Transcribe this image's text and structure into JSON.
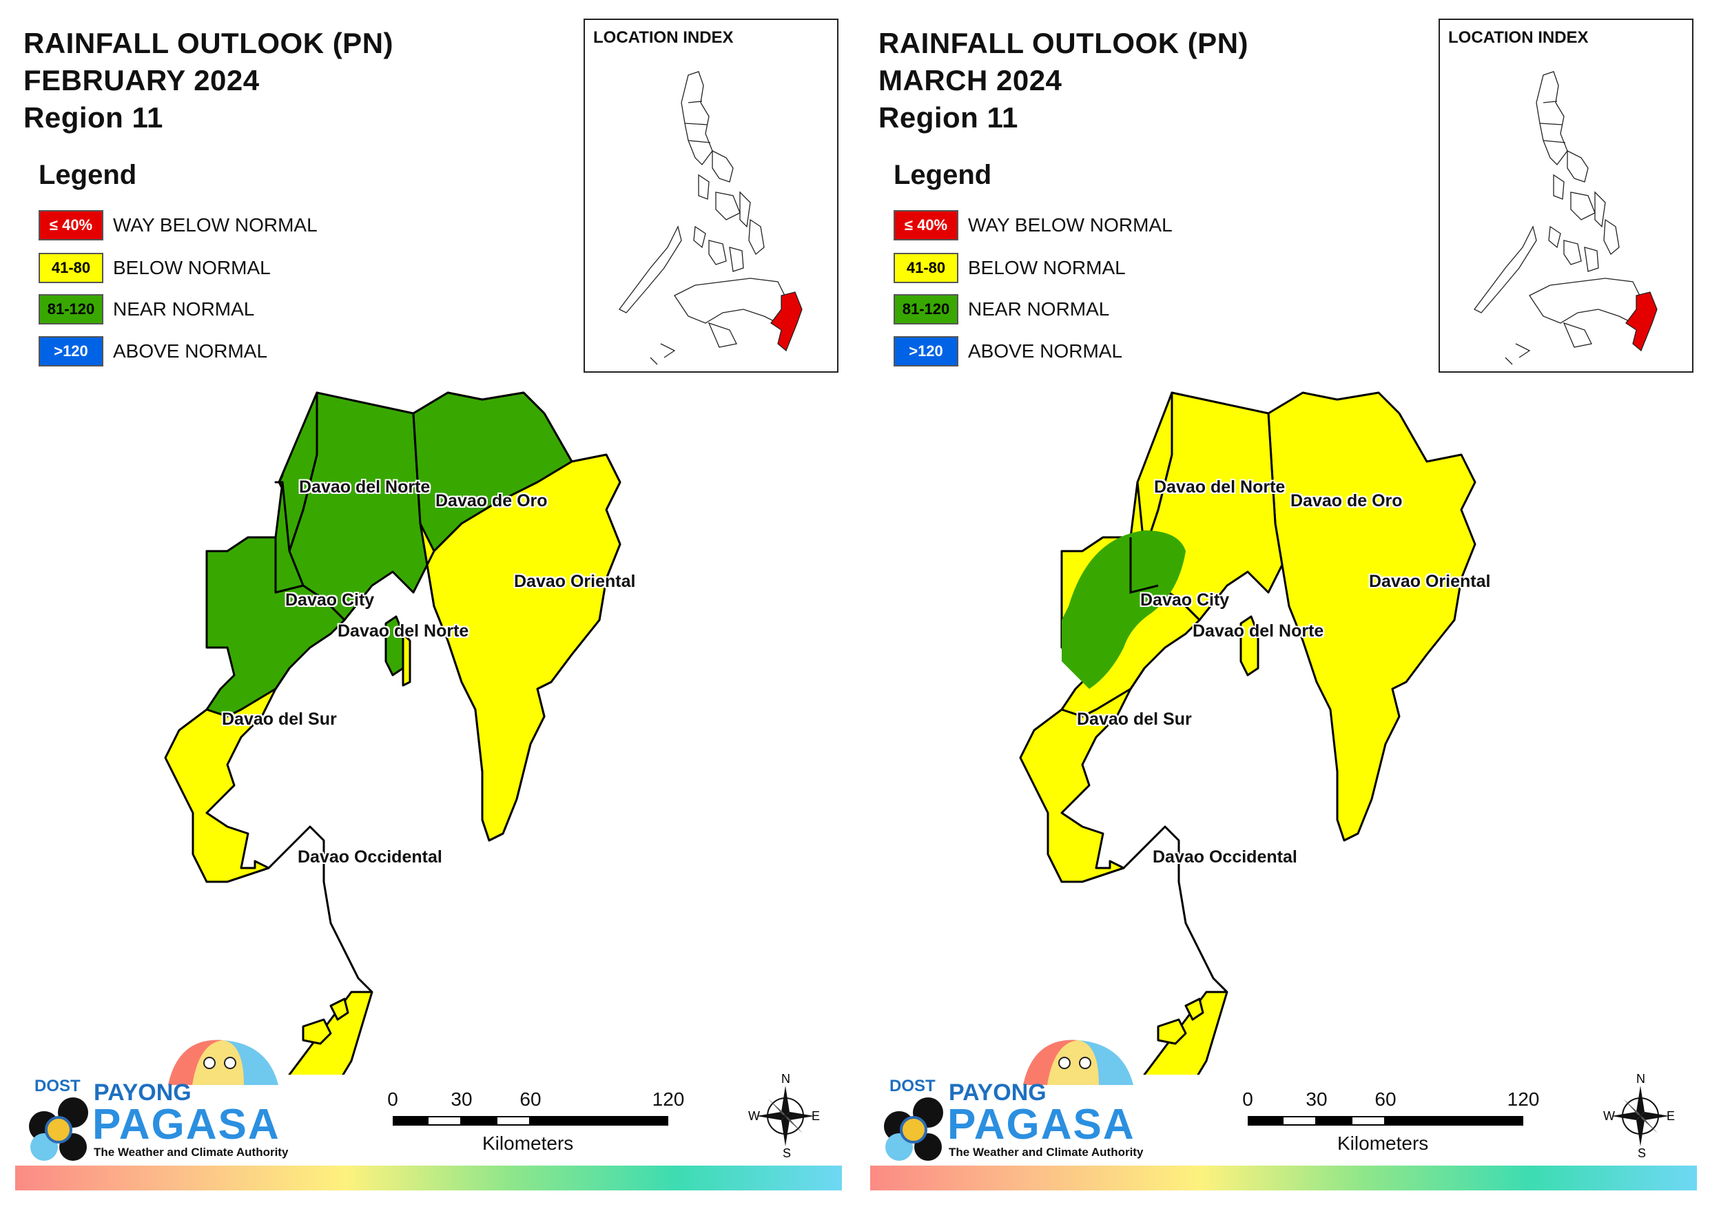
{
  "panels": [
    {
      "title_line1": "RAINFALL OUTLOOK (PN)",
      "title_line2": "FEBRUARY 2024",
      "title_line3": "Region 11",
      "inset_title": "LOCATION INDEX",
      "regions": {
        "davao_del_norte_north": "near_normal",
        "davao_de_oro": "near_normal",
        "davao_oriental_north": "near_normal",
        "davao_oriental": "below_normal",
        "davao_city": "near_normal",
        "davao_del_norte_island": "near_normal",
        "davao_del_sur": "below_normal",
        "davao_occidental": "below_normal"
      }
    },
    {
      "title_line1": "RAINFALL OUTLOOK (PN)",
      "title_line2": "MARCH 2024",
      "title_line3": "Region 11",
      "inset_title": "LOCATION INDEX",
      "regions": {
        "davao_del_norte_north": "below_normal",
        "davao_de_oro": "below_normal",
        "davao_oriental_north": "below_normal",
        "davao_oriental": "below_normal",
        "davao_city": "near_normal_partial",
        "davao_del_norte_island": "below_normal",
        "davao_del_sur": "below_normal",
        "davao_occidental": "below_normal"
      }
    }
  ],
  "legend": {
    "heading": "Legend",
    "items": [
      {
        "swatch": "≤ 40%",
        "label": "WAY BELOW NORMAL",
        "color": "#e50000",
        "text_color": "#ffffff"
      },
      {
        "swatch": "41-80",
        "label": "BELOW NORMAL",
        "color": "#ffff00",
        "text_color": "#000000"
      },
      {
        "swatch": "81-120",
        "label": "NEAR NORMAL",
        "color": "#38a800",
        "text_color": "#000000"
      },
      {
        "swatch": ">120",
        "label": "ABOVE NORMAL",
        "color": "#0063e6",
        "text_color": "#ffffff"
      }
    ]
  },
  "place_labels": {
    "davao_del_norte": "Davao del Norte",
    "davao_de_oro": "Davao de Oro",
    "davao_oriental": "Davao Oriental",
    "davao_city": "Davao City",
    "davao_del_norte_2": "Davao del Norte",
    "davao_del_sur": "Davao del Sur",
    "davao_occidental": "Davao Occidental"
  },
  "scale_bar": {
    "ticks": [
      "0",
      "30",
      "60",
      "120"
    ],
    "unit": "Kilometers"
  },
  "compass": {
    "n": "N",
    "s": "S",
    "e": "E",
    "w": "W"
  },
  "logo": {
    "dost": "DOST",
    "payong": "PAYONG",
    "pagasa": "PAGASA",
    "tagline": "The Weather and Climate Authority"
  },
  "colors": {
    "near_normal": "#38a800",
    "below_normal": "#ffff00",
    "highlight": "#e50000"
  }
}
